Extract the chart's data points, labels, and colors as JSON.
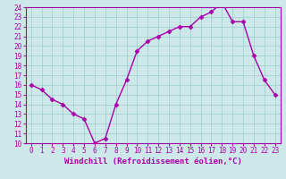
{
  "x": [
    0,
    1,
    2,
    3,
    4,
    5,
    6,
    7,
    8,
    9,
    10,
    11,
    12,
    13,
    14,
    15,
    16,
    17,
    18,
    19,
    20,
    21,
    22,
    23
  ],
  "y": [
    16,
    15.5,
    14.5,
    14,
    13,
    12.5,
    10,
    10.5,
    14,
    16.5,
    19.5,
    20.5,
    21,
    21.5,
    22,
    22,
    23,
    23.5,
    24.5,
    22.5,
    22.5,
    19,
    16.5,
    15
  ],
  "line_color": "#aa00aa",
  "marker": "D",
  "marker_size": 2.5,
  "bg_color": "#cce8e8",
  "grid_color": "#99cccc",
  "xlabel": "Windchill (Refroidissement éolien,°C)",
  "ylim": [
    10,
    24
  ],
  "xlim": [
    -0.5,
    23.5
  ],
  "yticks": [
    10,
    11,
    12,
    13,
    14,
    15,
    16,
    17,
    18,
    19,
    20,
    21,
    22,
    23,
    24
  ],
  "xticks": [
    0,
    1,
    2,
    3,
    4,
    5,
    6,
    7,
    8,
    9,
    10,
    11,
    12,
    13,
    14,
    15,
    16,
    17,
    18,
    19,
    20,
    21,
    22,
    23
  ],
  "tick_fontsize": 5.5,
  "xlabel_fontsize": 6.5,
  "line_width": 1.0
}
